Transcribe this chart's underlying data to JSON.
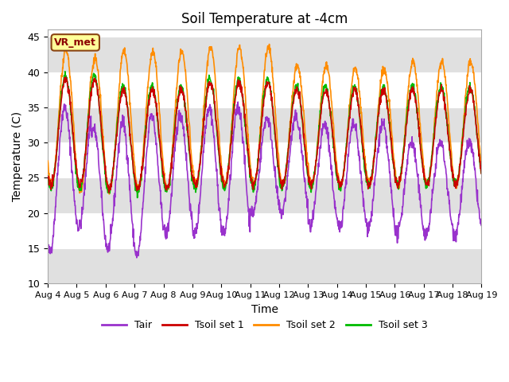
{
  "title": "Soil Temperature at -4cm",
  "xlabel": "Time",
  "ylabel": "Temperature (C)",
  "ylim": [
    10,
    46
  ],
  "xlim_days": [
    0,
    15
  ],
  "fig_facecolor": "#ffffff",
  "plot_facecolor": "#ffffff",
  "band_color": "#e0e0e0",
  "band_ranges": [
    [
      40,
      45
    ],
    [
      30,
      35
    ],
    [
      20,
      25
    ]
  ],
  "grid_color": "white",
  "legend_label": "VR_met",
  "legend_box_color": "#ffff99",
  "legend_box_edge": "#8B4513",
  "series_colors": {
    "Tair": "#9932CC",
    "Tsoil1": "#CC0000",
    "Tsoil2": "#FF8C00",
    "Tsoil3": "#00BB00"
  },
  "series_labels": [
    "Tair",
    "Tsoil set 1",
    "Tsoil set 2",
    "Tsoil set 3"
  ],
  "tick_dates": [
    "Aug 4",
    "Aug 5",
    "Aug 6",
    "Aug 7",
    "Aug 8",
    "Aug 9",
    "Aug 10",
    "Aug 11",
    "Aug 12",
    "Aug 13",
    "Aug 14",
    "Aug 15",
    "Aug 16",
    "Aug 17",
    "Aug 18",
    "Aug 19"
  ],
  "tick_positions": [
    0,
    1,
    2,
    3,
    4,
    5,
    6,
    7,
    8,
    9,
    10,
    11,
    12,
    13,
    14,
    15
  ],
  "yticks": [
    10,
    15,
    20,
    25,
    30,
    35,
    40,
    45
  ]
}
